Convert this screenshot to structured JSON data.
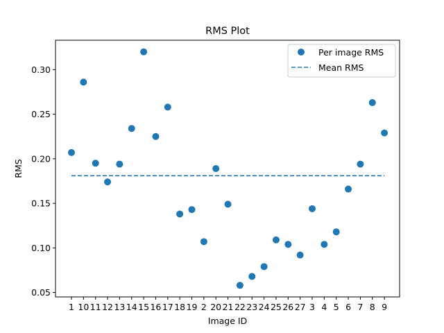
{
  "chart_data": {
    "type": "scatter",
    "title": "RMS Plot",
    "xlabel": "Image ID",
    "ylabel": "RMS",
    "categories": [
      "1",
      "10",
      "11",
      "12",
      "13",
      "14",
      "15",
      "16",
      "17",
      "18",
      "19",
      "2",
      "20",
      "21",
      "22",
      "23",
      "24",
      "25",
      "26",
      "27",
      "3",
      "4",
      "5",
      "6",
      "7",
      "8",
      "9"
    ],
    "series": [
      {
        "name": "Per image RMS",
        "type": "scatter",
        "values": [
          0.207,
          0.286,
          0.195,
          0.174,
          0.194,
          0.234,
          0.32,
          0.225,
          0.258,
          0.138,
          0.143,
          0.107,
          0.189,
          0.149,
          0.058,
          0.068,
          0.079,
          0.109,
          0.104,
          0.092,
          0.144,
          0.104,
          0.118,
          0.166,
          0.194,
          0.263,
          0.229
        ]
      },
      {
        "name": "Mean RMS",
        "type": "line",
        "style": "dashed",
        "value": 0.181
      }
    ],
    "ylim": [
      0.045,
      0.333
    ],
    "yticks": [
      0.05,
      0.1,
      0.15,
      0.2,
      0.25,
      0.3
    ],
    "ytick_labels": [
      "0.05",
      "0.10",
      "0.15",
      "0.20",
      "0.25",
      "0.30"
    ],
    "grid": false,
    "legend_position": "top-right",
    "colors": {
      "series": "#1f77b4",
      "axis": "#000000",
      "legend_border": "#cccccc"
    }
  }
}
